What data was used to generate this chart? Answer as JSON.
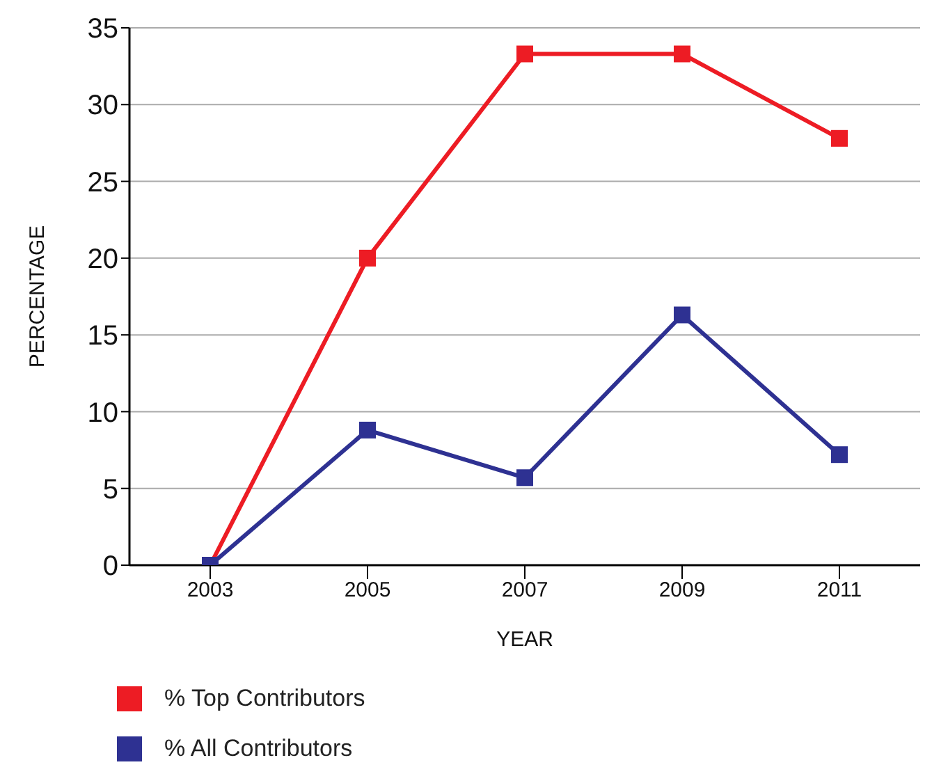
{
  "chart_data": {
    "type": "line",
    "xlabel": "YEAR",
    "ylabel": "PERCENTAGE",
    "categories": [
      "2003",
      "2005",
      "2007",
      "2009",
      "2011"
    ],
    "series": [
      {
        "name": "% Top Contributors",
        "color": "#ed1c24",
        "values": [
          0,
          20,
          33.3,
          33.3,
          27.8
        ]
      },
      {
        "name": "% All Contributors",
        "color": "#2e3192",
        "values": [
          0,
          8.8,
          5.7,
          16.3,
          7.2
        ]
      }
    ],
    "ylim": [
      0,
      35
    ],
    "yticks": [
      0,
      5,
      10,
      15,
      20,
      25,
      30,
      35
    ],
    "grid": "y",
    "legend": "bottom left",
    "marker": "square",
    "line_style": "solid"
  }
}
